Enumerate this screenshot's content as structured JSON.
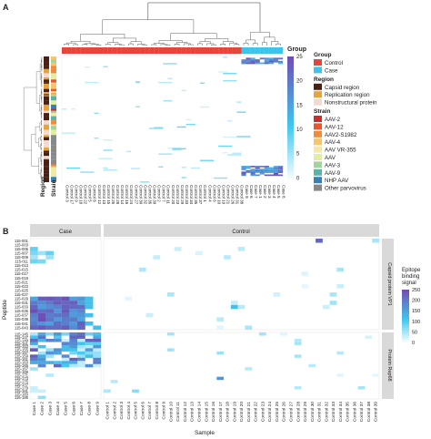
{
  "panel_a": {
    "label": "A",
    "legend": {
      "group_title": "Group",
      "group_items": [
        {
          "label": "Control",
          "color": "#e8443a"
        },
        {
          "label": "Case",
          "color": "#3cc4ec"
        }
      ],
      "region_title": "Region",
      "region_items": [
        {
          "label": "Capsid region",
          "color": "#4a1f14"
        },
        {
          "label": "Replication region",
          "color": "#e6a23c"
        },
        {
          "label": "Nonstructural protein",
          "color": "#f4d9cf"
        }
      ],
      "strain_title": "Strain",
      "strain_items": [
        {
          "label": "AAV-2",
          "color": "#c9302c"
        },
        {
          "label": "AAV-12",
          "color": "#e8552e"
        },
        {
          "label": "AAV2-S1982",
          "color": "#f08a3c"
        },
        {
          "label": "AAV-4",
          "color": "#f7c36b"
        },
        {
          "label": "AAV VR-355",
          "color": "#f7e7a4"
        },
        {
          "label": "AAV",
          "color": "#e3ee9e"
        },
        {
          "label": "AAV-3",
          "color": "#a3d39c"
        },
        {
          "label": "AAV-9",
          "color": "#5bb3a8"
        },
        {
          "label": "NHP AAV",
          "color": "#3a80b8"
        },
        {
          "label": "Other parvovirus",
          "color": "#888888"
        }
      ]
    },
    "annotation_labels": {
      "region": "Region",
      "strain": "Strain"
    },
    "colorbar_ticks": [
      "25",
      "20",
      "15",
      "10",
      "5",
      "0"
    ],
    "sample_labels": [
      "Control 3",
      "Control 17",
      "Control 9",
      "Control 18",
      "Control 22",
      "Control 5",
      "Control 8",
      "Control 12",
      "Control 13",
      "Control 15",
      "Control 25",
      "Control 28",
      "Control 14",
      "Control 16",
      "Control 24",
      "Control 27",
      "Control 30",
      "Control 32",
      "Control 36",
      "Control 39",
      "Control 2",
      "Control 7",
      "Control 11",
      "Control 20",
      "Control 23",
      "Control 29",
      "Control 33",
      "Control 34",
      "Control 35",
      "Control 37",
      "Control 1",
      "Control 4",
      "Control 6",
      "Control 10",
      "Control 19",
      "Control 21",
      "Control 26",
      "Control 31",
      "Control 38",
      "Case 9",
      "Case 6",
      "Case 7",
      "Case 1",
      "Case 2",
      "Case 3",
      "Case 4",
      "Case 5",
      "Case 8"
    ]
  },
  "panel_b": {
    "label": "B",
    "facet_case": "Case",
    "facet_control": "Control",
    "facet_capsid": "Capsid protein VP1",
    "facet_rep": "Protein Rep68",
    "xlabel": "Sample",
    "ylabel": "Peptide",
    "legend_title_1": "Epitope",
    "legend_title_2": "binding",
    "legend_title_3": "signal",
    "legend_ticks": [
      "250",
      "200",
      "150",
      "100",
      "50",
      "0"
    ],
    "case_labels": [
      "Case 1",
      "Case 2",
      "Case 3",
      "Case 4",
      "Case 5",
      "Case 6",
      "Case 7",
      "Case 8",
      "Case 9"
    ],
    "control_labels": [
      "Control 1",
      "Control 2",
      "Control 3",
      "Control 4",
      "Control 5",
      "Control 6",
      "Control 7",
      "Control 8",
      "Control 9",
      "Control 10",
      "Control 11",
      "Control 12",
      "Control 13",
      "Control 14",
      "Control 15",
      "Control 16",
      "Control 17",
      "Control 18",
      "Control 19",
      "Control 20",
      "Control 21",
      "Control 22",
      "Control 23",
      "Control 24",
      "Control 25",
      "Control 26",
      "Control 27",
      "Control 28",
      "Control 29",
      "Control 30",
      "Control 31",
      "Control 32",
      "Control 33",
      "Control 34",
      "Control 35",
      "Control 36",
      "Control 37",
      "Control 38",
      "Control 39"
    ],
    "peptide_labels_top": [
      "115-001",
      "115-003",
      "115-005",
      "115-007",
      "115-009",
      "115-011",
      "115-013",
      "115-015",
      "115-017",
      "115-019",
      "115-021",
      "115-023",
      "115-025",
      "115-027",
      "115-029",
      "115-031",
      "115-033",
      "115-035",
      "115-037",
      "115-039",
      "115-041",
      "115-043"
    ],
    "peptide_labels_bottom": [
      "115-145",
      "115-147",
      "115-149",
      "115-151",
      "115-153",
      "115-155",
      "115-157",
      "115-159",
      "115-161",
      "115-163",
      "115-165",
      "115-167",
      "115-169",
      "115-171",
      "115-173",
      "115-175",
      "115-177",
      "115-179",
      "115-181",
      "115-183",
      "115-185"
    ]
  },
  "chart_data": [
    {
      "type": "heatmap",
      "title": "",
      "rows": "peptides (clustered)",
      "columns": "samples (clustered)",
      "color_scale": [
        0,
        25
      ],
      "case_signal_rows_fraction": [
        [
          0.01,
          0.06
        ],
        [
          0.87,
          0.95
        ]
      ]
    },
    {
      "type": "heatmap",
      "xlabel": "Sample",
      "ylabel": "Peptide",
      "color_scale": [
        0,
        250
      ],
      "case_high_signal": {
        "capsid_rows": [
          14,
          21
        ],
        "rep_rows": [
          0,
          10
        ]
      },
      "control_spots": [
        {
          "sample": "Control 31",
          "facet": "Capsid protein VP1",
          "row": 0,
          "value": 220
        },
        {
          "sample": "Control 19",
          "facet": "Capsid protein VP1",
          "row": 16,
          "value": 120
        },
        {
          "sample": "Control 17",
          "facet": "Protein Rep68",
          "row": 14,
          "value": 170
        },
        {
          "sample": "Control 5",
          "facet": "Protein Rep68",
          "row": 18,
          "value": 70
        },
        {
          "sample": "Control 17",
          "facet": "Protein Rep68",
          "row": 6,
          "value": 60
        }
      ]
    }
  ]
}
